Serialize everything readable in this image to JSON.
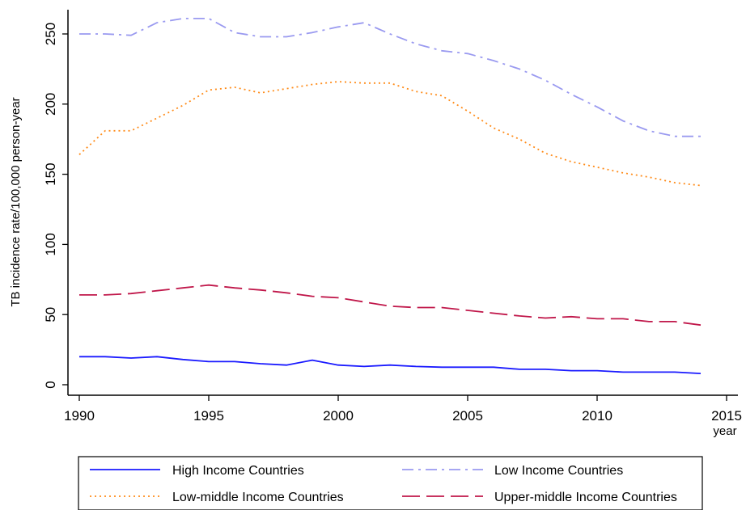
{
  "chart_data": {
    "type": "line",
    "title": "",
    "xlabel": "year",
    "ylabel": "TB incidence rate/100,000 person-year",
    "xlim": [
      1990,
      2015
    ],
    "ylim": [
      0,
      260
    ],
    "x_ticks": [
      "1990",
      "1995",
      "2000",
      "2005",
      "2010",
      "2015"
    ],
    "y_ticks": [
      "0",
      "50",
      "100",
      "150",
      "200",
      "250"
    ],
    "grid": false,
    "legend_position": "bottom",
    "x": [
      1990,
      1991,
      1992,
      1993,
      1994,
      1995,
      1996,
      1997,
      1998,
      1999,
      2000,
      2001,
      2002,
      2003,
      2004,
      2005,
      2006,
      2007,
      2008,
      2009,
      2010,
      2011,
      2012,
      2013,
      2014
    ],
    "series": [
      {
        "name": "High Income Countries",
        "color": "#1a1aff",
        "dash": "solid",
        "values": [
          20,
          20,
          19,
          20,
          18,
          16.5,
          16.5,
          15,
          14,
          17.5,
          14,
          13,
          14,
          13,
          12.5,
          12.5,
          12.5,
          11,
          11,
          10,
          10,
          9,
          9,
          9,
          8
        ]
      },
      {
        "name": "Low Income Countries",
        "color": "#9a9af0",
        "dash": "dashdot",
        "values": [
          250,
          250,
          249,
          258,
          261,
          261,
          251,
          248,
          248,
          251,
          255,
          258,
          250,
          243,
          238,
          236,
          231,
          225,
          217,
          207,
          198,
          188,
          181,
          177,
          177
        ]
      },
      {
        "name": "Low-middle Income Countries",
        "color": "#ff8c1a",
        "dash": "dotted",
        "values": [
          164,
          181,
          181,
          190,
          199,
          210,
          212,
          208,
          211,
          214,
          216,
          215,
          215,
          209,
          206,
          195,
          183,
          175,
          165,
          159,
          155,
          151,
          148,
          144,
          142
        ]
      },
      {
        "name": "Upper-middle Income Countries",
        "color": "#c0174a",
        "dash": "dashed",
        "values": [
          64,
          64,
          65,
          67,
          69,
          71,
          69,
          67.5,
          65.5,
          63,
          62,
          59,
          56,
          55,
          55,
          53,
          51,
          49,
          47.5,
          48.5,
          47,
          47,
          45,
          45,
          42.5
        ]
      }
    ],
    "legend": [
      {
        "label": "High Income Countries",
        "series": 0
      },
      {
        "label": "Low Income Countries",
        "series": 1
      },
      {
        "label": "Low-middle Income Countries",
        "series": 2
      },
      {
        "label": "Upper-middle Income Countries",
        "series": 3
      }
    ]
  }
}
